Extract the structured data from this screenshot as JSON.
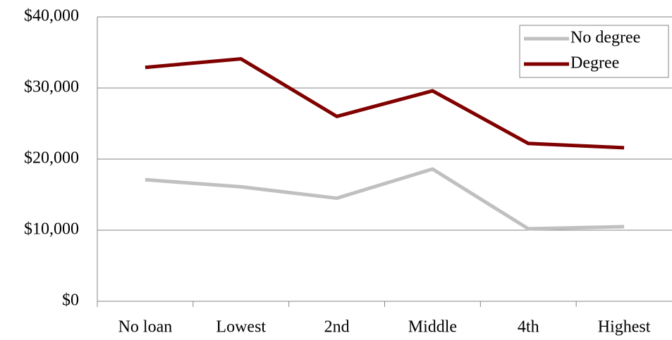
{
  "chart_data": {
    "type": "line",
    "categories": [
      "No loan",
      "Lowest",
      "2nd",
      "Middle",
      "4th",
      "Highest"
    ],
    "series": [
      {
        "name": "No degree",
        "color": "#c0c0c0",
        "values": [
          17100,
          16100,
          14500,
          18600,
          10200,
          10500
        ]
      },
      {
        "name": "Degree",
        "color": "#800000",
        "values": [
          32900,
          34100,
          26000,
          29600,
          22200,
          21600
        ]
      }
    ],
    "ylim": [
      0,
      40000
    ],
    "yticks": [
      {
        "value": 0,
        "label": "$0"
      },
      {
        "value": 10000,
        "label": "$10,000"
      },
      {
        "value": 20000,
        "label": "$20,000"
      },
      {
        "value": 30000,
        "label": "$30,000"
      },
      {
        "value": 40000,
        "label": "$40,000"
      }
    ],
    "grid": true,
    "legend": "upper right"
  }
}
